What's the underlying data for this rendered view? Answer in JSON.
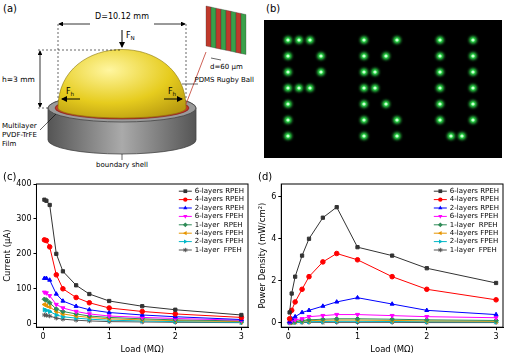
{
  "panels": {
    "a": {
      "panel_label": "(a)",
      "diameter": "D=10.12 mm",
      "height": "h=3 mm",
      "thickness": "d=60 μm",
      "force_normal": {
        "text": "F",
        "sub": "N"
      },
      "force_horizontal": {
        "text": "F",
        "sub": "h"
      },
      "film": [
        "Multilayer",
        "PVDF-TrFE",
        "Film"
      ],
      "ball": "PDMS Rugby Ball",
      "shell": "boundary shell"
    },
    "b": {
      "panel_label": "(b)"
    }
  },
  "chart_data": [
    {
      "panel_label": "(c)",
      "type": "line",
      "x_label": "Load (MΩ)",
      "y_label": "Current (μA)",
      "x": [
        0.02,
        0.05,
        0.1,
        0.2,
        0.3,
        0.5,
        0.7,
        1.0,
        1.5,
        2.0,
        3.0
      ],
      "xlim": [
        -0.1,
        3.1
      ],
      "xticks": [
        0,
        1,
        2,
        3
      ],
      "ylim": [
        -10,
        400
      ],
      "yticks": [
        0,
        100,
        200,
        300,
        400
      ],
      "grid": false,
      "legend": "upper right",
      "series": [
        {
          "name": "6-layers RPEH",
          "color": "#333333",
          "marker": "square",
          "values": [
            355,
            352,
            340,
            200,
            150,
            110,
            85,
            65,
            50,
            40,
            25
          ]
        },
        {
          "name": "4-layers RPEH",
          "color": "#ff0000",
          "marker": "circle",
          "values": [
            240,
            238,
            220,
            140,
            100,
            75,
            60,
            45,
            35,
            28,
            18
          ]
        },
        {
          "name": "2-layers RPEH",
          "color": "#0000ff",
          "marker": "triangle-up",
          "values": [
            130,
            130,
            125,
            85,
            65,
            50,
            40,
            32,
            25,
            20,
            12
          ]
        },
        {
          "name": "6-layers FPEH",
          "color": "#ff00ff",
          "marker": "triangle-down",
          "values": [
            90,
            88,
            80,
            55,
            45,
            35,
            28,
            22,
            18,
            15,
            10
          ]
        },
        {
          "name": "1-layer  RPEH",
          "color": "#2e8b57",
          "marker": "diamond",
          "values": [
            70,
            68,
            60,
            42,
            35,
            28,
            22,
            18,
            14,
            11,
            8
          ]
        },
        {
          "name": "4-layers FPEH",
          "color": "#e69500",
          "marker": "triangle-left",
          "values": [
            55,
            52,
            48,
            35,
            28,
            22,
            18,
            14,
            11,
            9,
            6
          ]
        },
        {
          "name": "2-layers FPEH",
          "color": "#00b7c7",
          "marker": "triangle-right",
          "values": [
            40,
            38,
            35,
            25,
            20,
            16,
            13,
            10,
            8,
            6,
            4
          ]
        },
        {
          "name": "1-layer  FPEH",
          "color": "#555555",
          "marker": "star",
          "values": [
            25,
            24,
            22,
            16,
            13,
            10,
            8,
            6,
            5,
            4,
            3
          ]
        }
      ]
    },
    {
      "panel_label": "(d)",
      "type": "line",
      "x_label": "Load (MΩ)",
      "y_label": "Power Density (mW/cm²)",
      "x": [
        0.02,
        0.05,
        0.1,
        0.2,
        0.3,
        0.5,
        0.7,
        1.0,
        1.5,
        2.0,
        3.0
      ],
      "xlim": [
        -0.1,
        3.1
      ],
      "xticks": [
        0,
        1,
        2,
        3
      ],
      "ylim": [
        -0.2,
        6.6
      ],
      "yticks": [
        0,
        2,
        4,
        6
      ],
      "grid": false,
      "legend": "upper right",
      "series": [
        {
          "name": "6-layers RPEH",
          "color": "#333333",
          "marker": "square",
          "values": [
            0.5,
            1.4,
            2.2,
            3.2,
            4.0,
            5.0,
            5.5,
            3.6,
            3.2,
            2.6,
            1.9
          ]
        },
        {
          "name": "4-layers RPEH",
          "color": "#ff0000",
          "marker": "circle",
          "values": [
            0.2,
            0.6,
            1.0,
            1.6,
            2.2,
            2.9,
            3.3,
            3.0,
            2.2,
            1.6,
            1.1
          ]
        },
        {
          "name": "2-layers RPEH",
          "color": "#0000ff",
          "marker": "triangle-up",
          "values": [
            0.05,
            0.2,
            0.3,
            0.5,
            0.6,
            0.8,
            1.0,
            1.2,
            0.9,
            0.6,
            0.4
          ]
        },
        {
          "name": "6-layers FPEH",
          "color": "#ff00ff",
          "marker": "triangle-down",
          "values": [
            0.02,
            0.1,
            0.15,
            0.2,
            0.3,
            0.35,
            0.4,
            0.4,
            0.35,
            0.3,
            0.25
          ]
        },
        {
          "name": "1-layer  RPEH",
          "color": "#2e8b57",
          "marker": "diamond",
          "values": [
            0.02,
            0.05,
            0.08,
            0.12,
            0.15,
            0.18,
            0.2,
            0.2,
            0.18,
            0.15,
            0.12
          ]
        },
        {
          "name": "4-layers FPEH",
          "color": "#e69500",
          "marker": "triangle-left",
          "values": [
            0.01,
            0.04,
            0.06,
            0.09,
            0.11,
            0.13,
            0.14,
            0.14,
            0.12,
            0.1,
            0.08
          ]
        },
        {
          "name": "2-layers FPEH",
          "color": "#00b7c7",
          "marker": "triangle-right",
          "values": [
            0.01,
            0.02,
            0.03,
            0.05,
            0.06,
            0.07,
            0.08,
            0.08,
            0.07,
            0.06,
            0.05
          ]
        },
        {
          "name": "1-layer  FPEH",
          "color": "#555555",
          "marker": "star",
          "values": [
            0.005,
            0.01,
            0.02,
            0.02,
            0.03,
            0.03,
            0.03,
            0.03,
            0.03,
            0.02,
            0.02
          ]
        }
      ]
    }
  ]
}
